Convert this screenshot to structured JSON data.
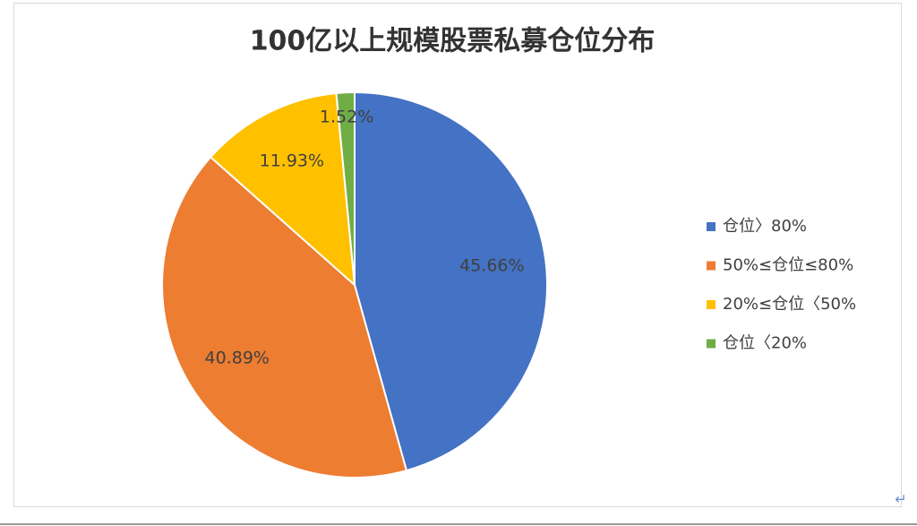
{
  "chart_data": {
    "type": "pie",
    "title": "100亿以上规模股票私募仓位分布",
    "categories": [
      "仓位〉80%",
      "50%≤仓位≤80%",
      "20%≤仓位〈50%",
      "仓位〈20%"
    ],
    "values": [
      45.66,
      40.89,
      11.93,
      1.52
    ],
    "value_labels": [
      "45.66%",
      "40.89%",
      "11.93%",
      "1.52%"
    ],
    "colors": [
      "#4472c4",
      "#ed7d31",
      "#ffc000",
      "#70ad47"
    ],
    "legend": "right"
  },
  "return_mark": "↵"
}
